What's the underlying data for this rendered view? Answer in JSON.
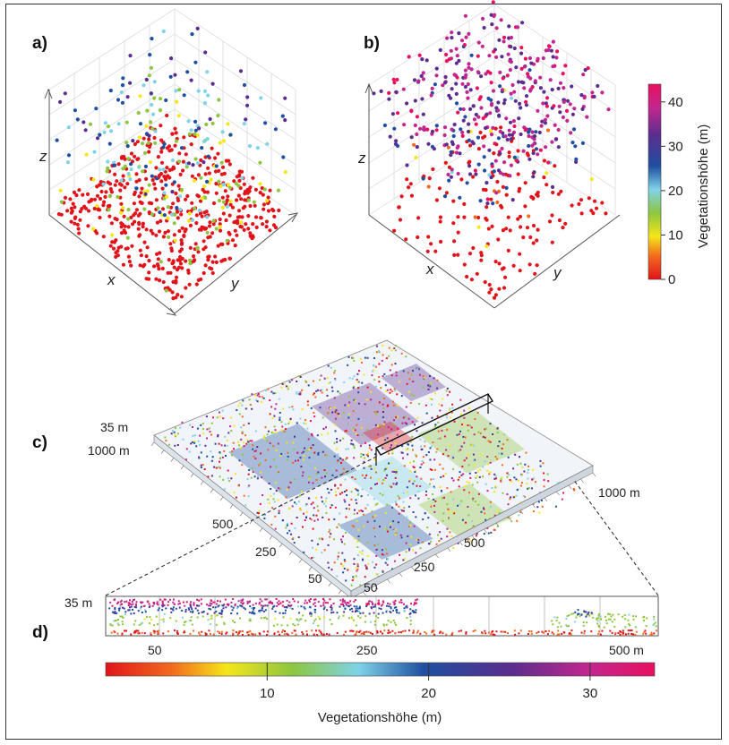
{
  "panels": {
    "a": {
      "label": "a)",
      "axes": {
        "x": "x",
        "y": "y",
        "z": "z"
      }
    },
    "b": {
      "label": "b)",
      "axes": {
        "x": "x",
        "y": "y",
        "z": "z"
      }
    },
    "c": {
      "label": "c)",
      "height_label": "35 m",
      "left_ticks": [
        "1000 m",
        "500",
        "250",
        "50"
      ],
      "right_ticks": [
        "1000 m",
        "500",
        "250",
        "50"
      ]
    },
    "d": {
      "label": "d)",
      "height_label": "35 m",
      "ticks": [
        "50",
        "250",
        "500 m"
      ]
    }
  },
  "vertical_colorbar": {
    "title": "Vegetationshöhe (m)",
    "ticks": [
      "40",
      "30",
      "20",
      "10",
      "0"
    ],
    "range": [
      0,
      44
    ]
  },
  "horizontal_colorbar": {
    "title": "Vegetationshöhe (m)",
    "ticks": [
      "10",
      "20",
      "30"
    ],
    "range": [
      0,
      34
    ]
  },
  "colors": {
    "scale": [
      "#e0141a",
      "#f26a1e",
      "#f5e61a",
      "#8dc63f",
      "#7fd3e8",
      "#1f4fa0",
      "#5b2d8e",
      "#c2278f",
      "#e8105f"
    ],
    "frame": "#333333"
  }
}
